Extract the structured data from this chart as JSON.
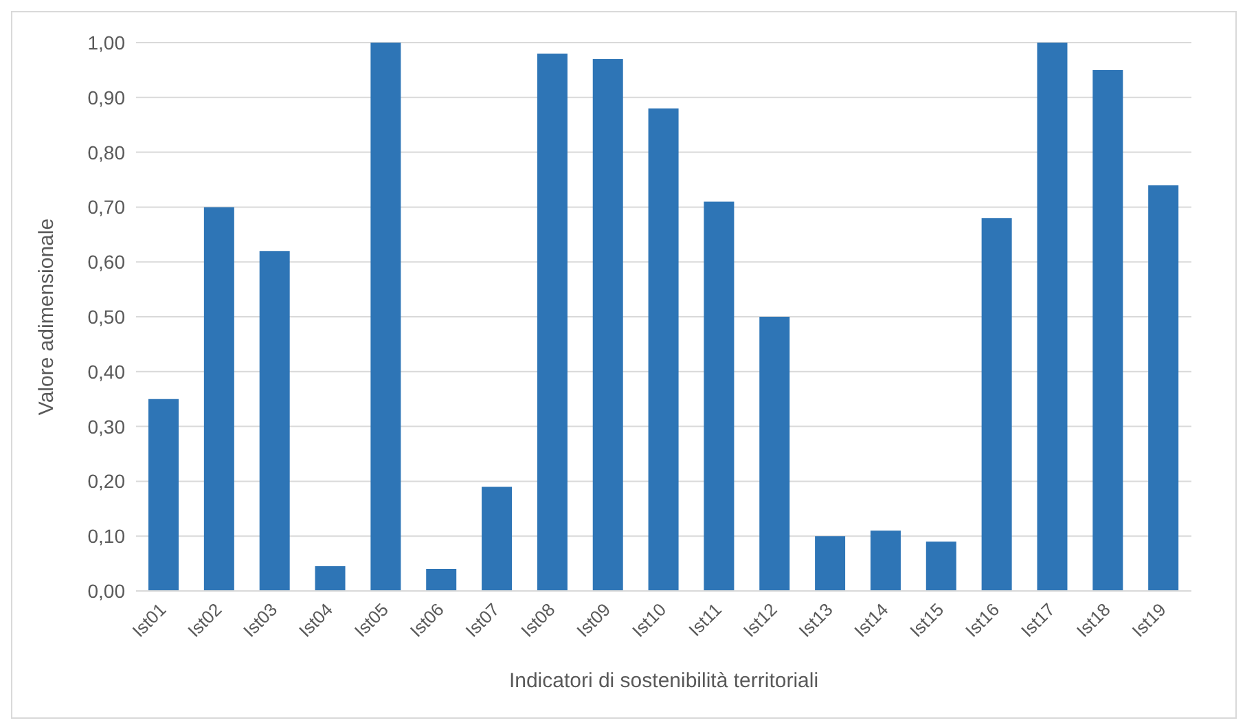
{
  "chart_data": {
    "type": "bar",
    "xlabel": "Indicatori di sostenibilità territoriali",
    "ylabel": "Valore adimensionale",
    "categories": [
      "Ist01",
      "Ist02",
      "Ist03",
      "Ist04",
      "Ist05",
      "Ist06",
      "Ist07",
      "Ist08",
      "Ist09",
      "Ist10",
      "Ist11",
      "Ist12",
      "Ist13",
      "Ist14",
      "Ist15",
      "Ist16",
      "Ist17",
      "Ist18",
      "Ist19"
    ],
    "values": [
      0.35,
      0.7,
      0.62,
      0.045,
      1.0,
      0.04,
      0.19,
      0.98,
      0.97,
      0.88,
      0.71,
      0.5,
      0.1,
      0.11,
      0.09,
      0.68,
      1.0,
      0.95,
      0.74
    ],
    "color": "#2e75b6",
    "ylim": [
      0,
      1
    ],
    "yticks": [
      {
        "value": 0,
        "label": "0,00"
      },
      {
        "value": 0.1,
        "label": "0,10"
      },
      {
        "value": 0.2,
        "label": "0,20"
      },
      {
        "value": 0.3,
        "label": "0,30"
      },
      {
        "value": 0.4,
        "label": "0,40"
      },
      {
        "value": 0.5,
        "label": "0,50"
      },
      {
        "value": 0.6,
        "label": "0,60"
      },
      {
        "value": 0.7,
        "label": "0,70"
      },
      {
        "value": 0.8,
        "label": "0,80"
      },
      {
        "value": 0.9,
        "label": "0,90"
      },
      {
        "value": 1,
        "label": "1,00"
      }
    ],
    "grid": "y",
    "legend": false
  }
}
